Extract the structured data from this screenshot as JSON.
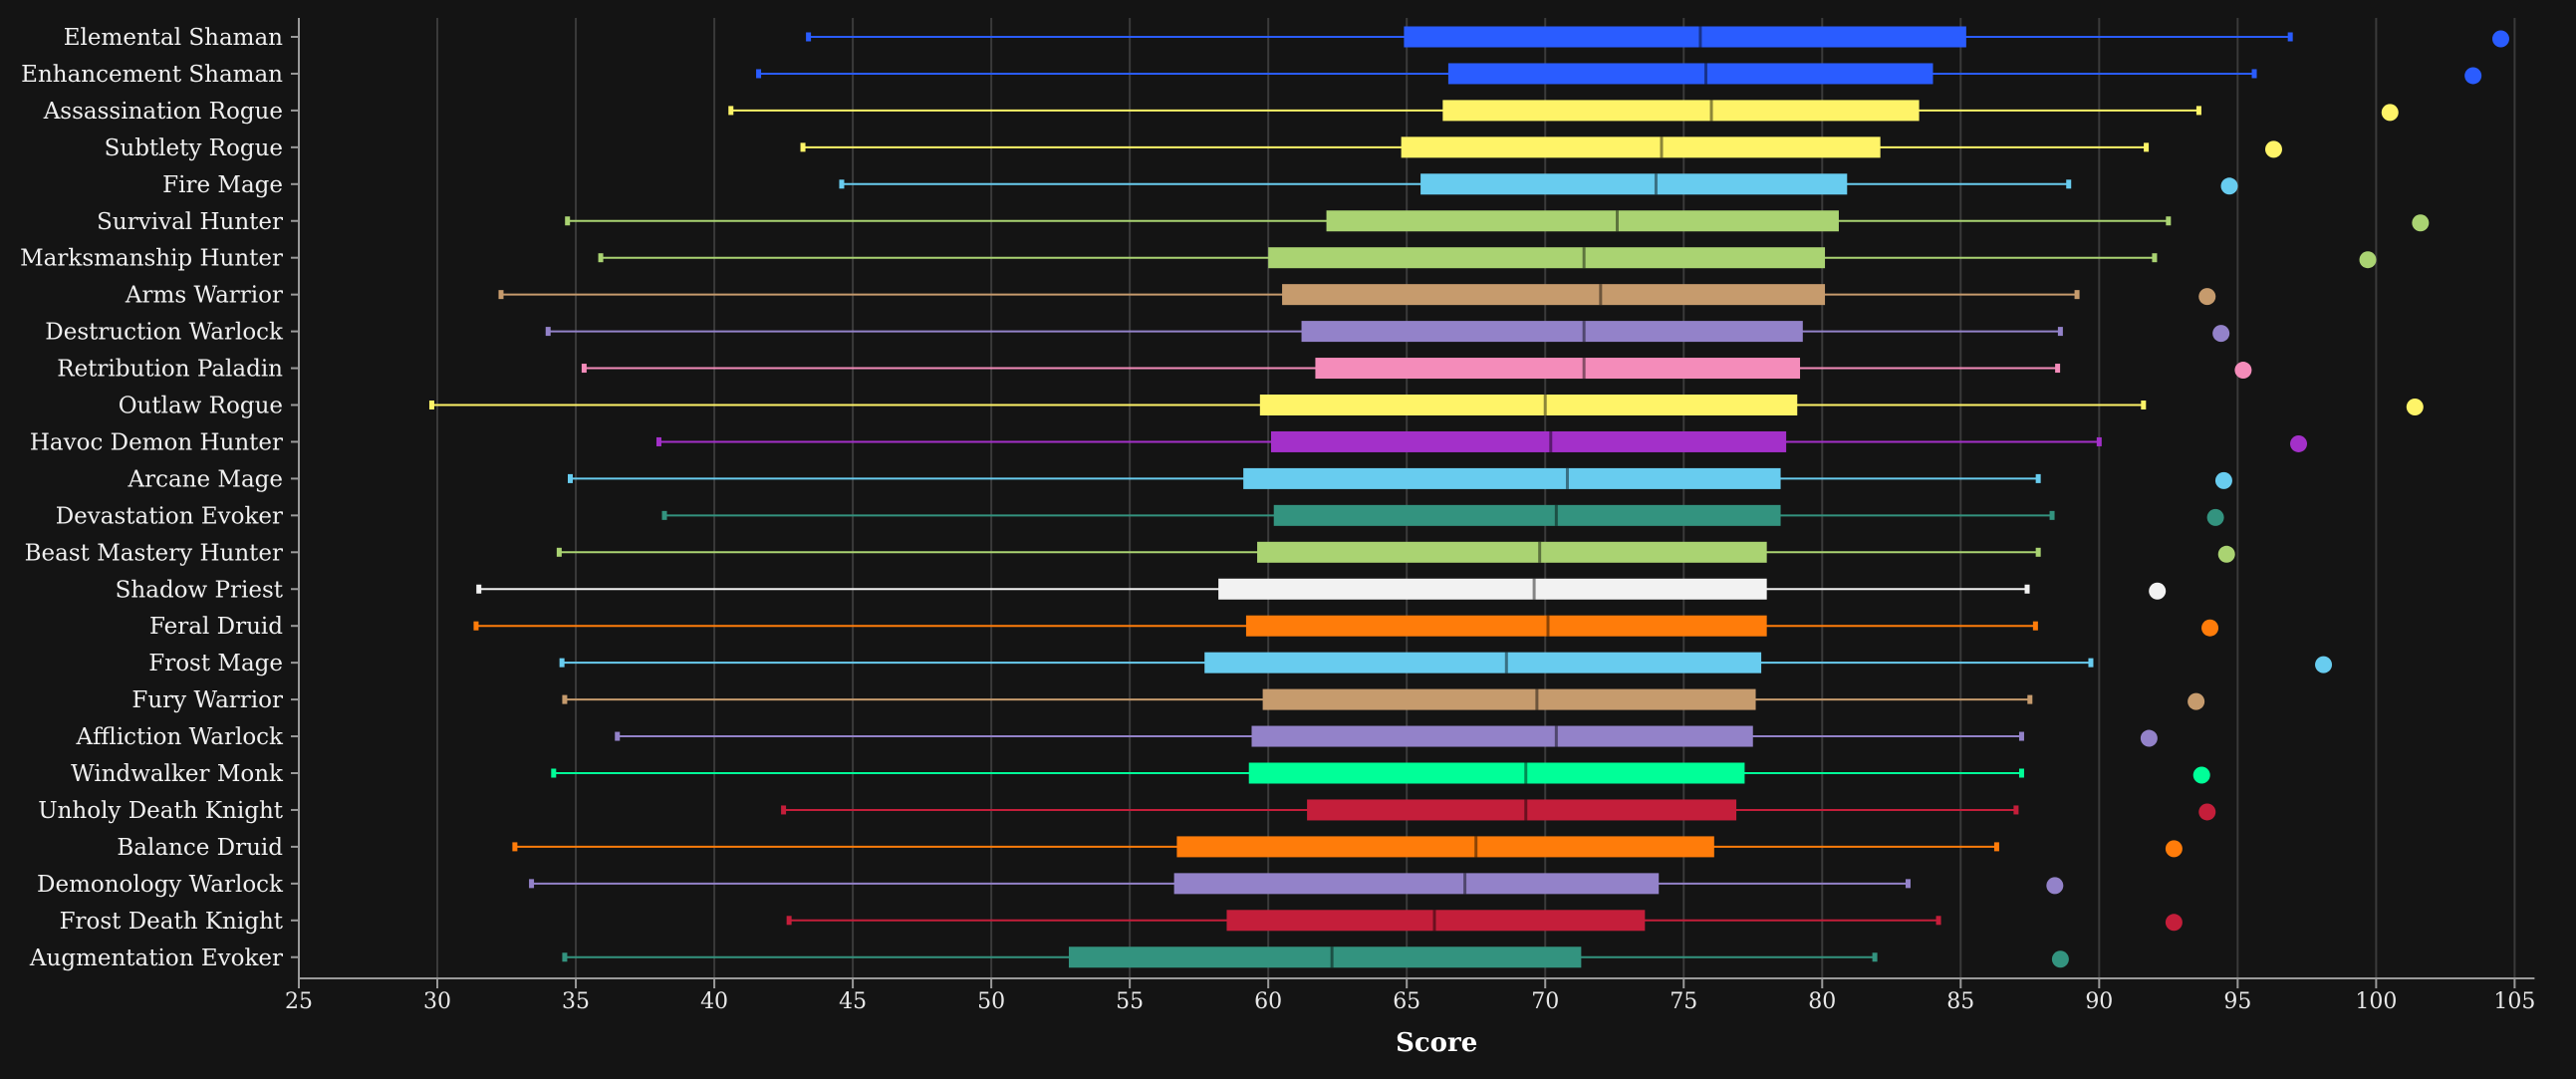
{
  "chart_data": {
    "type": "box",
    "title": "",
    "xlabel": "Score",
    "ylabel": "",
    "xlim": [
      25,
      107
    ],
    "xticks": [
      25,
      30,
      35,
      40,
      45,
      50,
      55,
      60,
      65,
      70,
      75,
      80,
      85,
      90,
      95,
      100,
      105
    ],
    "grid": "vertical",
    "legend": "none",
    "series": [
      {
        "name": "Elemental Shaman",
        "color": "#2a5cff",
        "min": 43.4,
        "q1": 64.9,
        "median": 75.6,
        "q3": 85.2,
        "max": 96.9,
        "outlier": 104.5
      },
      {
        "name": "Enhancement Shaman",
        "color": "#2a5cff",
        "min": 41.6,
        "q1": 66.5,
        "median": 75.8,
        "q3": 84.0,
        "max": 95.6,
        "outlier": 103.5
      },
      {
        "name": "Assassination Rogue",
        "color": "#fff468",
        "min": 40.6,
        "q1": 66.3,
        "median": 76.0,
        "q3": 83.5,
        "max": 93.6,
        "outlier": 100.5
      },
      {
        "name": "Subtlety Rogue",
        "color": "#fff468",
        "min": 43.2,
        "q1": 64.8,
        "median": 74.2,
        "q3": 82.1,
        "max": 91.7,
        "outlier": 96.3
      },
      {
        "name": "Fire Mage",
        "color": "#68ccef",
        "min": 44.6,
        "q1": 65.5,
        "median": 74.0,
        "q3": 80.9,
        "max": 88.9,
        "outlier": 94.7
      },
      {
        "name": "Survival Hunter",
        "color": "#aad372",
        "min": 34.7,
        "q1": 62.1,
        "median": 72.6,
        "q3": 80.6,
        "max": 92.5,
        "outlier": 101.6
      },
      {
        "name": "Marksmanship Hunter",
        "color": "#aad372",
        "min": 35.9,
        "q1": 60.0,
        "median": 71.4,
        "q3": 80.1,
        "max": 92.0,
        "outlier": 99.7
      },
      {
        "name": "Arms Warrior",
        "color": "#c69b6d",
        "min": 32.3,
        "q1": 60.5,
        "median": 72.0,
        "q3": 80.1,
        "max": 89.2,
        "outlier": 93.9
      },
      {
        "name": "Destruction Warlock",
        "color": "#9382c9",
        "min": 34.0,
        "q1": 61.2,
        "median": 71.4,
        "q3": 79.3,
        "max": 88.6,
        "outlier": 94.4
      },
      {
        "name": "Retribution Paladin",
        "color": "#f48cba",
        "min": 35.3,
        "q1": 61.7,
        "median": 71.4,
        "q3": 79.2,
        "max": 88.5,
        "outlier": 95.2
      },
      {
        "name": "Outlaw Rogue",
        "color": "#fff468",
        "min": 29.8,
        "q1": 59.7,
        "median": 70.0,
        "q3": 79.1,
        "max": 91.6,
        "outlier": 101.4
      },
      {
        "name": "Havoc Demon Hunter",
        "color": "#a330c9",
        "min": 38.0,
        "q1": 60.1,
        "median": 70.2,
        "q3": 78.7,
        "max": 90.0,
        "outlier": 97.2
      },
      {
        "name": "Arcane Mage",
        "color": "#68ccef",
        "min": 34.8,
        "q1": 59.1,
        "median": 70.8,
        "q3": 78.5,
        "max": 87.8,
        "outlier": 94.5
      },
      {
        "name": "Devastation Evoker",
        "color": "#33937f",
        "min": 38.2,
        "q1": 60.2,
        "median": 70.4,
        "q3": 78.5,
        "max": 88.3,
        "outlier": 94.2
      },
      {
        "name": "Beast Mastery Hunter",
        "color": "#aad372",
        "min": 34.4,
        "q1": 59.6,
        "median": 69.8,
        "q3": 78.0,
        "max": 87.8,
        "outlier": 94.6
      },
      {
        "name": "Shadow Priest",
        "color": "#f2f2f2",
        "min": 31.5,
        "q1": 58.2,
        "median": 69.6,
        "q3": 78.0,
        "max": 87.4,
        "outlier": 92.1
      },
      {
        "name": "Feral Druid",
        "color": "#ff7c0a",
        "min": 31.4,
        "q1": 59.2,
        "median": 70.1,
        "q3": 78.0,
        "max": 87.7,
        "outlier": 94.0
      },
      {
        "name": "Frost Mage",
        "color": "#68ccef",
        "min": 34.5,
        "q1": 57.7,
        "median": 68.6,
        "q3": 77.8,
        "max": 89.7,
        "outlier": 98.1
      },
      {
        "name": "Fury Warrior",
        "color": "#c69b6d",
        "min": 34.6,
        "q1": 59.8,
        "median": 69.7,
        "q3": 77.6,
        "max": 87.5,
        "outlier": 93.5
      },
      {
        "name": "Affliction Warlock",
        "color": "#9382c9",
        "min": 36.5,
        "q1": 59.4,
        "median": 70.4,
        "q3": 77.5,
        "max": 87.2,
        "outlier": 91.8
      },
      {
        "name": "Windwalker Monk",
        "color": "#00ff98",
        "min": 34.2,
        "q1": 59.3,
        "median": 69.3,
        "q3": 77.2,
        "max": 87.2,
        "outlier": 93.7
      },
      {
        "name": "Unholy Death Knight",
        "color": "#c41e3a",
        "min": 42.5,
        "q1": 61.4,
        "median": 69.3,
        "q3": 76.9,
        "max": 87.0,
        "outlier": 93.9
      },
      {
        "name": "Balance Druid",
        "color": "#ff7c0a",
        "min": 32.8,
        "q1": 56.7,
        "median": 67.5,
        "q3": 76.1,
        "max": 86.3,
        "outlier": 92.7
      },
      {
        "name": "Demonology Warlock",
        "color": "#9382c9",
        "min": 33.4,
        "q1": 56.6,
        "median": 67.1,
        "q3": 74.1,
        "max": 83.1,
        "outlier": 88.4
      },
      {
        "name": "Frost Death Knight",
        "color": "#c41e3a",
        "min": 42.7,
        "q1": 58.5,
        "median": 66.0,
        "q3": 73.6,
        "max": 84.2,
        "outlier": 92.7
      },
      {
        "name": "Augmentation Evoker",
        "color": "#33937f",
        "min": 34.6,
        "q1": 52.8,
        "median": 62.3,
        "q3": 71.3,
        "max": 81.9,
        "outlier": 88.6
      }
    ]
  }
}
